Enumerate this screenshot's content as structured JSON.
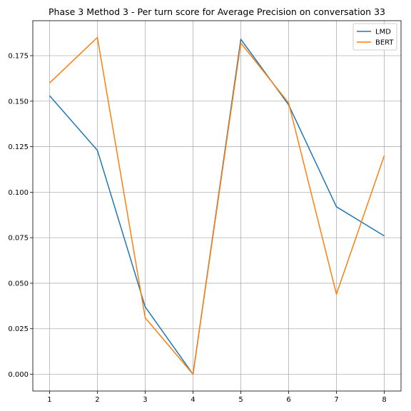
{
  "chart_data": {
    "type": "line",
    "title": "Phase 3 Method 3 - Per turn score for Average Precision on conversation 33",
    "xlabel": "",
    "ylabel": "",
    "x": [
      1,
      2,
      3,
      4,
      5,
      6,
      7,
      8
    ],
    "xticks": [
      "1",
      "2",
      "3",
      "4",
      "5",
      "6",
      "7",
      "8"
    ],
    "yticks": [
      "0.000",
      "0.025",
      "0.050",
      "0.075",
      "0.100",
      "0.125",
      "0.150",
      "0.175"
    ],
    "ytick_values": [
      0,
      0.025,
      0.05,
      0.075,
      0.1,
      0.125,
      0.15,
      0.175
    ],
    "xlim": [
      0.65,
      8.35
    ],
    "ylim": [
      -0.0092,
      0.1942
    ],
    "grid": true,
    "legend_position": "top-right",
    "series": [
      {
        "name": "LMD",
        "color": "#1f77b4",
        "values": [
          0.153,
          0.123,
          0.037,
          0.0,
          0.184,
          0.148,
          0.092,
          0.076
        ]
      },
      {
        "name": "BERT",
        "color": "#ff7f0e",
        "values": [
          0.16,
          0.185,
          0.031,
          0.0,
          0.182,
          0.149,
          0.044,
          0.12
        ]
      }
    ]
  }
}
